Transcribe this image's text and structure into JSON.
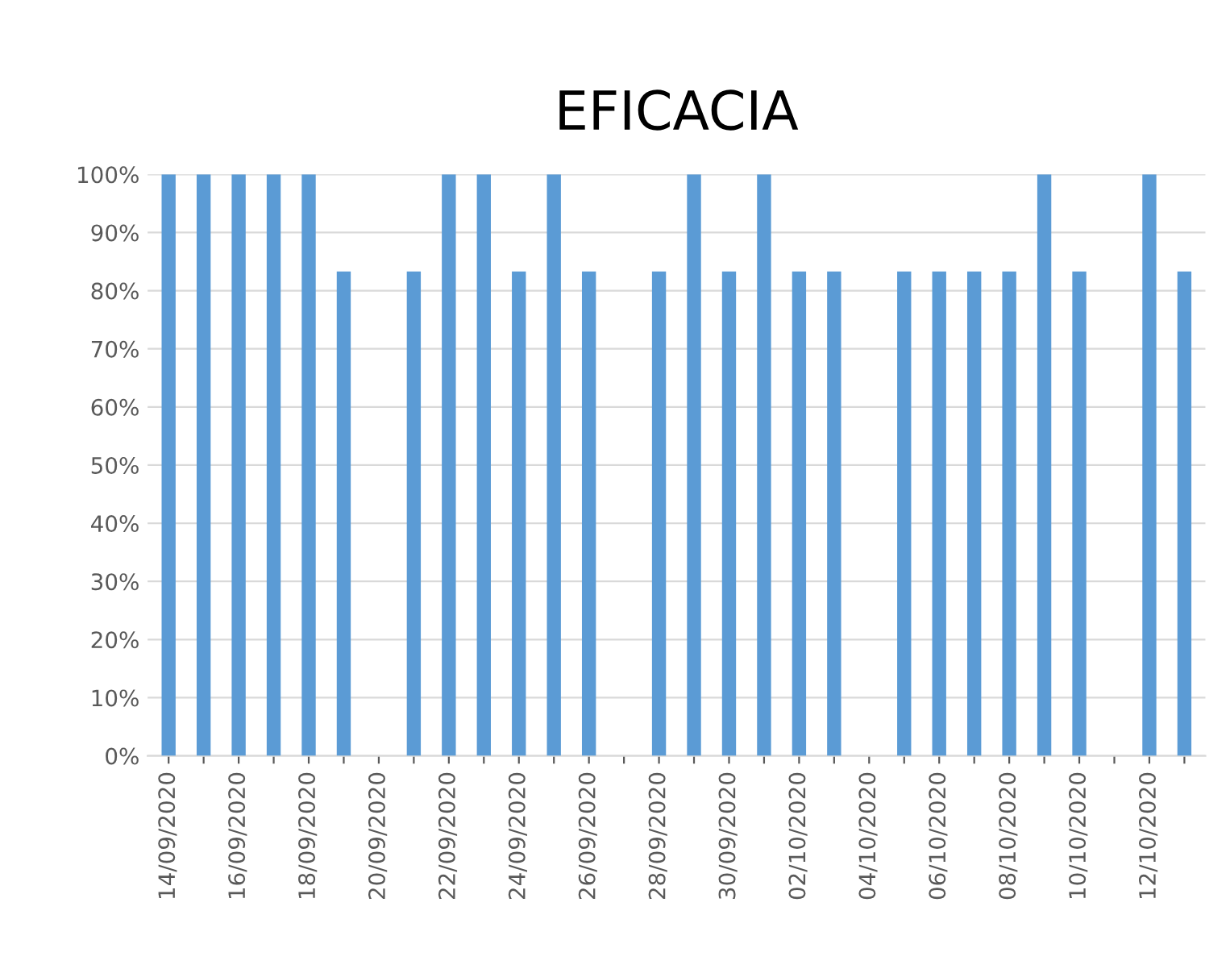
{
  "chart_data": {
    "type": "bar",
    "title": "EFICACIA",
    "categories": [
      "14/09/2020",
      null,
      "16/09/2020",
      null,
      "18/09/2020",
      null,
      "20/09/2020",
      null,
      "22/09/2020",
      null,
      "24/09/2020",
      null,
      "26/09/2020",
      null,
      "28/09/2020",
      null,
      "30/09/2020",
      null,
      "02/10/2020",
      null,
      "04/10/2020",
      null,
      "06/10/2020",
      null,
      "08/10/2020",
      null,
      "10/10/2020",
      null,
      "12/10/2020",
      null
    ],
    "values": [
      100,
      100,
      100,
      100,
      100,
      83.3,
      null,
      83.3,
      100,
      100,
      83.3,
      100,
      83.3,
      null,
      83.3,
      100,
      83.3,
      100,
      83.3,
      83.3,
      null,
      83.3,
      83.3,
      83.3,
      83.3,
      100,
      83.3,
      null,
      100,
      83.3
    ],
    "color": "#5b9bd5",
    "ylim": [
      0,
      100
    ],
    "yticks": [
      {
        "value": 0,
        "label": "0%"
      },
      {
        "value": 10,
        "label": "10%"
      },
      {
        "value": 20,
        "label": "20%"
      },
      {
        "value": 30,
        "label": "30%"
      },
      {
        "value": 40,
        "label": "40%"
      },
      {
        "value": 50,
        "label": "50%"
      },
      {
        "value": 60,
        "label": "60%"
      },
      {
        "value": 70,
        "label": "70%"
      },
      {
        "value": 80,
        "label": "80%"
      },
      {
        "value": 90,
        "label": "90%"
      },
      {
        "value": 100,
        "label": "100%"
      }
    ],
    "grid": "y"
  }
}
